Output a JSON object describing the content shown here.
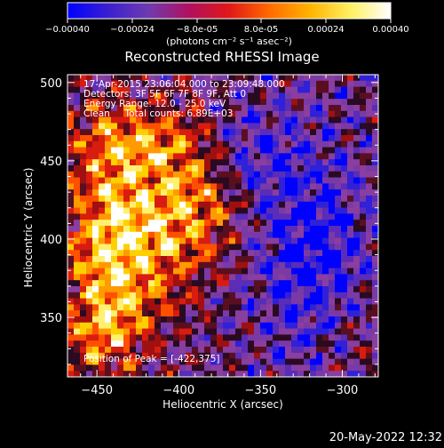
{
  "colorbar": {
    "ticks": [
      "-0.00040",
      "-0.00024",
      "-8.0e-05",
      "8.0e-05",
      "0.00024",
      "0.00040"
    ],
    "unit_label": "(photons cm⁻² s⁻¹ asec⁻²)",
    "range": [
      -0.0004,
      0.0004
    ],
    "stops": [
      "#0000ff",
      "#3a1fd0",
      "#6e3bb0",
      "#b01060",
      "#e01818",
      "#ff6a00",
      "#ffb300",
      "#fff060",
      "#ffffff"
    ]
  },
  "title": "Reconstructed RHESSI Image",
  "info_lines": [
    "17-Apr-2015 23:06:04.000 to 23:09:48.000",
    "Detectors: 3F 5F 6F 7F 8F 9F, Att 0",
    "Energy Range: 12.0 - 25.0 keV",
    "Clean     Total counts: 6.89E+03"
  ],
  "peak_label": "Position of Peak = [-422,375]",
  "timestamp": "20-May-2022 12:32",
  "chart_data": {
    "type": "heatmap",
    "title": "Reconstructed RHESSI Image",
    "xlabel": "Heliocentric X (arcsec)",
    "ylabel": "Heliocentric Y (arcsec)",
    "xlim": [
      -468,
      -278
    ],
    "ylim": [
      312,
      505
    ],
    "x_ticks": [
      -450,
      -400,
      -350,
      -300
    ],
    "y_ticks": [
      350,
      400,
      450,
      500
    ],
    "x_tick_labels": [
      "−450",
      "−400",
      "−350",
      "−300"
    ],
    "y_tick_labels": [
      "350",
      "400",
      "450",
      "500"
    ],
    "peak": [
      -422,
      375
    ],
    "grid": false,
    "colorscale_range": [
      -0.0004,
      0.0004
    ]
  }
}
